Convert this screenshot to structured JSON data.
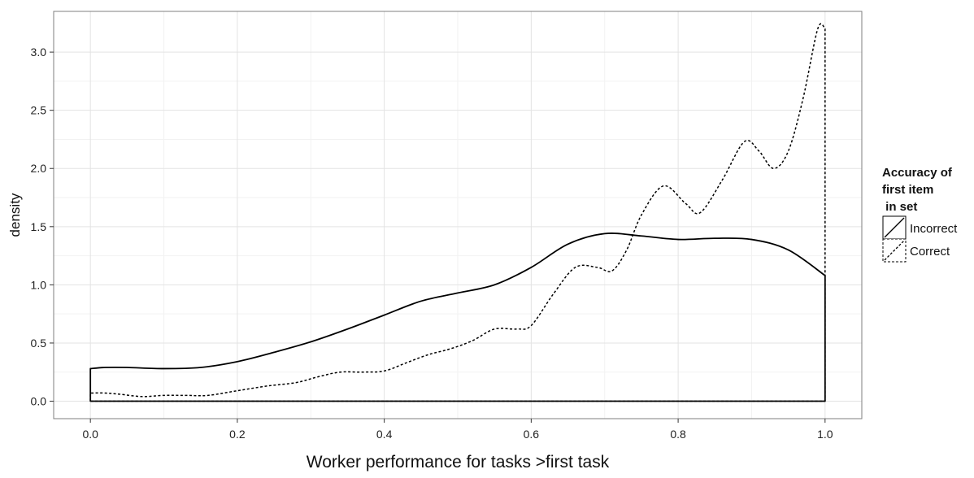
{
  "chart_data": {
    "type": "area",
    "xlabel": "Worker performance for tasks >first task",
    "ylabel": "density",
    "xlim": [
      -0.05,
      1.05
    ],
    "ylim": [
      -0.15,
      3.35
    ],
    "x_ticks": [
      0.0,
      0.2,
      0.4,
      0.6,
      0.8,
      1.0
    ],
    "x_tick_labels": [
      "0.0",
      "0.2",
      "0.4",
      "0.6",
      "0.8",
      "1.0"
    ],
    "y_ticks": [
      0.0,
      0.5,
      1.0,
      1.5,
      2.0,
      2.5,
      3.0
    ],
    "y_tick_labels": [
      "0.0",
      "0.5",
      "1.0",
      "1.5",
      "2.0",
      "2.5",
      "3.0"
    ],
    "grid": true,
    "legend": {
      "title_lines": [
        "Accuracy of",
        "first item",
        " in set"
      ],
      "placement": "right"
    },
    "series": [
      {
        "name": "Incorrect",
        "line_style": "solid",
        "x": [
          0.0,
          0.02,
          0.05,
          0.1,
          0.15,
          0.2,
          0.25,
          0.3,
          0.35,
          0.4,
          0.45,
          0.5,
          0.55,
          0.6,
          0.65,
          0.7,
          0.75,
          0.8,
          0.85,
          0.9,
          0.95,
          1.0
        ],
        "y": [
          0.28,
          0.29,
          0.29,
          0.28,
          0.29,
          0.34,
          0.42,
          0.51,
          0.62,
          0.74,
          0.86,
          0.93,
          1.0,
          1.15,
          1.35,
          1.44,
          1.42,
          1.39,
          1.4,
          1.39,
          1.3,
          1.08
        ]
      },
      {
        "name": "Correct",
        "line_style": "dashed",
        "x": [
          0.0,
          0.02,
          0.04,
          0.07,
          0.1,
          0.13,
          0.16,
          0.2,
          0.24,
          0.28,
          0.31,
          0.34,
          0.37,
          0.4,
          0.43,
          0.46,
          0.49,
          0.52,
          0.55,
          0.58,
          0.6,
          0.63,
          0.66,
          0.69,
          0.71,
          0.73,
          0.75,
          0.78,
          0.81,
          0.83,
          0.86,
          0.89,
          0.91,
          0.93,
          0.95,
          0.97,
          0.99,
          1.0
        ],
        "y": [
          0.07,
          0.07,
          0.06,
          0.04,
          0.05,
          0.05,
          0.05,
          0.09,
          0.13,
          0.16,
          0.21,
          0.25,
          0.25,
          0.26,
          0.33,
          0.4,
          0.45,
          0.52,
          0.62,
          0.62,
          0.65,
          0.92,
          1.15,
          1.15,
          1.12,
          1.3,
          1.6,
          1.85,
          1.7,
          1.62,
          1.9,
          2.23,
          2.15,
          2.0,
          2.15,
          2.6,
          3.2,
          3.2
        ]
      }
    ]
  }
}
